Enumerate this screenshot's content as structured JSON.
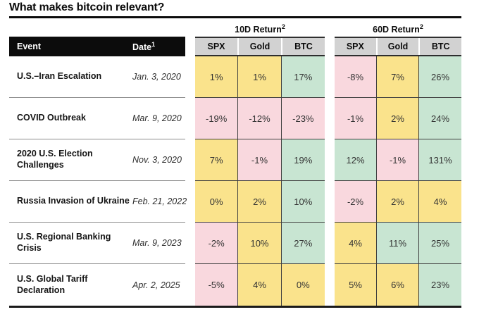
{
  "title": "What makes bitcoin relevant?",
  "colors": {
    "yellow": "#fae38c",
    "pink": "#f9d8de",
    "green": "#c8e5d2",
    "header_gray": "#d2d2d2",
    "header_black": "#0c0c0c",
    "grid_border": "#3f3f3f"
  },
  "table": {
    "event_header": "Event",
    "date_header": "Date",
    "date_header_sup": "1",
    "groups": [
      {
        "label": "10D Return",
        "sup": "2",
        "columns": [
          "SPX",
          "Gold",
          "BTC"
        ]
      },
      {
        "label": "60D Return",
        "sup": "2",
        "columns": [
          "SPX",
          "Gold",
          "BTC"
        ]
      }
    ],
    "rows": [
      {
        "event": "U.S.–Iran Escalation",
        "date": "Jan. 3, 2020",
        "cells": [
          {
            "value": "1%",
            "color": "yellow"
          },
          {
            "value": "1%",
            "color": "yellow"
          },
          {
            "value": "17%",
            "color": "green"
          },
          {
            "value": "-8%",
            "color": "pink"
          },
          {
            "value": "7%",
            "color": "yellow"
          },
          {
            "value": "26%",
            "color": "green"
          }
        ]
      },
      {
        "event": "COVID Outbreak",
        "date": "Mar. 9, 2020",
        "cells": [
          {
            "value": "-19%",
            "color": "pink"
          },
          {
            "value": "-12%",
            "color": "pink"
          },
          {
            "value": "-23%",
            "color": "pink"
          },
          {
            "value": "-1%",
            "color": "pink"
          },
          {
            "value": "2%",
            "color": "yellow"
          },
          {
            "value": "24%",
            "color": "green"
          }
        ]
      },
      {
        "event": "2020 U.S. Election Challenges",
        "date": "Nov. 3, 2020",
        "cells": [
          {
            "value": "7%",
            "color": "yellow"
          },
          {
            "value": "-1%",
            "color": "pink"
          },
          {
            "value": "19%",
            "color": "green"
          },
          {
            "value": "12%",
            "color": "green"
          },
          {
            "value": "-1%",
            "color": "pink"
          },
          {
            "value": "131%",
            "color": "green"
          }
        ]
      },
      {
        "event": "Russia Invasion of Ukraine",
        "date": "Feb. 21, 2022",
        "cells": [
          {
            "value": "0%",
            "color": "yellow"
          },
          {
            "value": "2%",
            "color": "yellow"
          },
          {
            "value": "10%",
            "color": "green"
          },
          {
            "value": "-2%",
            "color": "pink"
          },
          {
            "value": "2%",
            "color": "yellow"
          },
          {
            "value": "4%",
            "color": "yellow"
          }
        ]
      },
      {
        "event": "U.S. Regional Banking Crisis",
        "date": "Mar. 9, 2023",
        "cells": [
          {
            "value": "-2%",
            "color": "pink"
          },
          {
            "value": "10%",
            "color": "yellow"
          },
          {
            "value": "27%",
            "color": "green"
          },
          {
            "value": "4%",
            "color": "yellow"
          },
          {
            "value": "11%",
            "color": "green"
          },
          {
            "value": "25%",
            "color": "green"
          }
        ]
      },
      {
        "event": "U.S. Global Tariff Declaration",
        "date": "Apr. 2, 2025",
        "cells": [
          {
            "value": "-5%",
            "color": "pink"
          },
          {
            "value": "4%",
            "color": "yellow"
          },
          {
            "value": "0%",
            "color": "yellow"
          },
          {
            "value": "5%",
            "color": "yellow"
          },
          {
            "value": "6%",
            "color": "yellow"
          },
          {
            "value": "23%",
            "color": "green"
          }
        ]
      }
    ]
  },
  "chart_data": {
    "type": "table",
    "title": "What makes bitcoin relevant?",
    "columns": [
      "Event",
      "Date¹",
      "10D Return² SPX",
      "10D Return² Gold",
      "10D Return² BTC",
      "60D Return² SPX",
      "60D Return² Gold",
      "60D Return² BTC"
    ],
    "rows": [
      [
        "U.S.–Iran Escalation",
        "Jan. 3, 2020",
        "1%",
        "1%",
        "17%",
        "-8%",
        "7%",
        "26%"
      ],
      [
        "COVID Outbreak",
        "Mar. 9, 2020",
        "-19%",
        "-12%",
        "-23%",
        "-1%",
        "2%",
        "24%"
      ],
      [
        "2020 U.S. Election Challenges",
        "Nov. 3, 2020",
        "7%",
        "-1%",
        "19%",
        "12%",
        "-1%",
        "131%"
      ],
      [
        "Russia Invasion of Ukraine",
        "Feb. 21, 2022",
        "0%",
        "2%",
        "10%",
        "-2%",
        "2%",
        "4%"
      ],
      [
        "U.S. Regional Banking Crisis",
        "Mar. 9, 2023",
        "-2%",
        "10%",
        "27%",
        "4%",
        "11%",
        "25%"
      ],
      [
        "U.S. Global Tariff Declaration",
        "Apr. 2, 2025",
        "-5%",
        "4%",
        "0%",
        "5%",
        "6%",
        "23%"
      ]
    ]
  }
}
